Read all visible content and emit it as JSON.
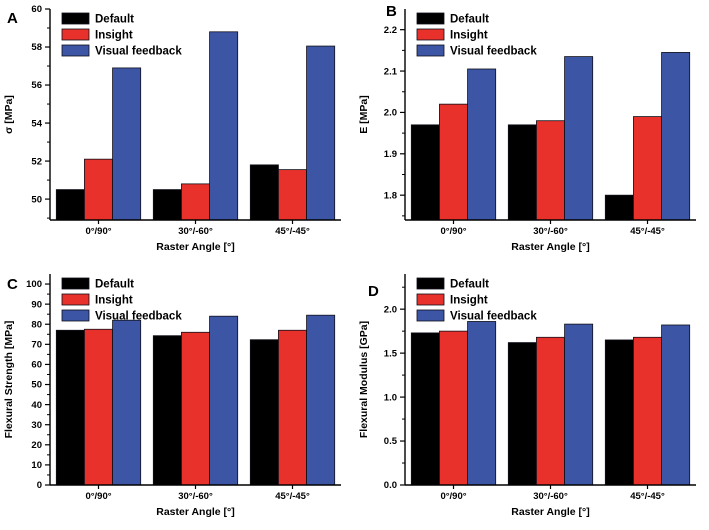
{
  "figure": {
    "background": "#ffffff",
    "colors": {
      "default": "#000000",
      "insight": "#e7312a",
      "visual_feedback": "#3c55a5",
      "bar_stroke": "#10101a",
      "axis": "#000000",
      "text": "#000000"
    },
    "legend_labels": [
      "Default",
      "Insight",
      "Visual feedback"
    ]
  },
  "chart_data": [
    {
      "panel": "A",
      "type": "bar",
      "title": "",
      "xlabel": "Raster Angle [°]",
      "ylabel": "σ [MPa]",
      "categories": [
        "0°/90°",
        "30°/-60°",
        "45°/-45°"
      ],
      "series": [
        {
          "name": "Default",
          "color_key": "default",
          "values": [
            50.5,
            50.5,
            51.8
          ]
        },
        {
          "name": "Insight",
          "color_key": "insight",
          "values": [
            52.1,
            50.8,
            51.55
          ]
        },
        {
          "name": "Visual feedback",
          "color_key": "visual_feedback",
          "values": [
            56.9,
            58.8,
            58.05
          ]
        }
      ],
      "ylim": [
        48.9,
        60
      ],
      "yticks": [
        50,
        52,
        54,
        56,
        58,
        60
      ],
      "minor_step": 1,
      "tick_decimals": 0,
      "legend_position": "top-left",
      "grid": false
    },
    {
      "panel": "B",
      "type": "bar",
      "title": "",
      "xlabel": "Raster Angle [°]",
      "ylabel": "E [MPa]",
      "categories": [
        "0°/90°",
        "30°/-60°",
        "45°/-45°"
      ],
      "series": [
        {
          "name": "Default",
          "color_key": "default",
          "values": [
            1.97,
            1.97,
            1.8
          ]
        },
        {
          "name": "Insight",
          "color_key": "insight",
          "values": [
            2.02,
            1.98,
            1.99
          ]
        },
        {
          "name": "Visual feedback",
          "color_key": "visual_feedback",
          "values": [
            2.105,
            2.135,
            2.145
          ]
        }
      ],
      "ylim": [
        1.74,
        2.25
      ],
      "yticks": [
        1.8,
        1.9,
        2.0,
        2.1,
        2.2
      ],
      "minor_step": 0.05,
      "tick_decimals": 1,
      "legend_position": "top-left",
      "grid": false
    },
    {
      "panel": "C",
      "type": "bar",
      "title": "",
      "xlabel": "Raster Angle [°]",
      "ylabel": "Flexural Strength [MPa]",
      "categories": [
        "0°/90°",
        "30°/-60°",
        "45°/-45°"
      ],
      "series": [
        {
          "name": "Default",
          "color_key": "default",
          "values": [
            77,
            74.3,
            72.3
          ]
        },
        {
          "name": "Insight",
          "color_key": "insight",
          "values": [
            77.5,
            76,
            77
          ]
        },
        {
          "name": "Visual feedback",
          "color_key": "visual_feedback",
          "values": [
            82,
            84,
            84.5
          ]
        }
      ],
      "ylim": [
        0,
        105
      ],
      "yticks": [
        0,
        10,
        20,
        30,
        40,
        50,
        60,
        70,
        80,
        90,
        100
      ],
      "minor_step": 5,
      "tick_decimals": 0,
      "legend_position": "top-left",
      "grid": false
    },
    {
      "panel": "D",
      "type": "bar",
      "title": "",
      "xlabel": "Raster Angle [°]",
      "ylabel": "Flexural Modulus [GPa]",
      "categories": [
        "0°/90°",
        "30°/-60°",
        "45°/-45°"
      ],
      "series": [
        {
          "name": "Default",
          "color_key": "default",
          "values": [
            1.73,
            1.62,
            1.65
          ]
        },
        {
          "name": "Insight",
          "color_key": "insight",
          "values": [
            1.75,
            1.68,
            1.68
          ]
        },
        {
          "name": "Visual feedback",
          "color_key": "visual_feedback",
          "values": [
            1.86,
            1.83,
            1.82
          ]
        }
      ],
      "ylim": [
        0,
        2.4
      ],
      "yticks": [
        0.0,
        0.5,
        1.0,
        1.5,
        2.0
      ],
      "minor_step": 0.25,
      "tick_decimals": 1,
      "legend_position": "top-left",
      "grid": false
    }
  ]
}
